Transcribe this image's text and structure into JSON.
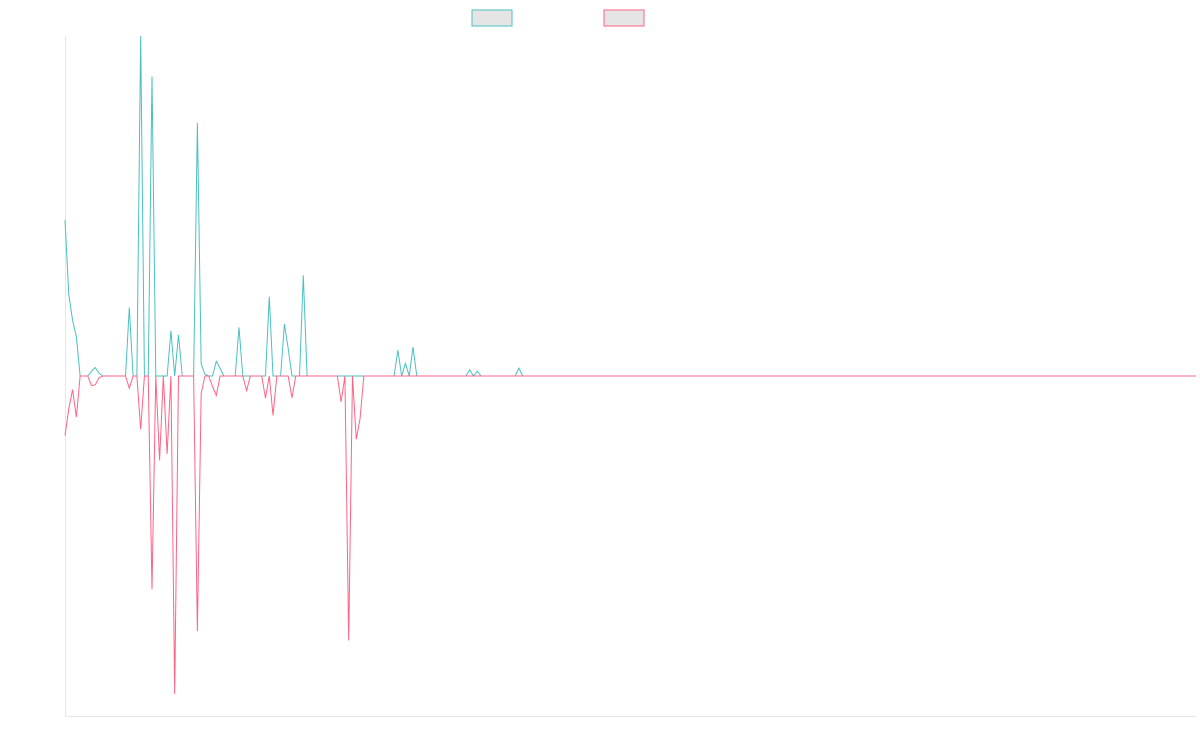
{
  "colors": {
    "background": "#ffffff",
    "axis": "#e6e6e6",
    "series_a": "#4bc0c0",
    "series_b": "#ff6384",
    "legend_fill": "#e5e5e5"
  },
  "chart_data": {
    "type": "line",
    "title": "",
    "xlabel": "",
    "ylabel": "",
    "ylim": [
      -100,
      100
    ],
    "grid": false,
    "legend": {
      "placement": "top-center",
      "entries": [
        "",
        ""
      ]
    },
    "x_count": 300,
    "series": [
      {
        "values": [
          45.9,
          24,
          16.4,
          11.6,
          0,
          0,
          0,
          1.4,
          2.5,
          0.8,
          0,
          0,
          0,
          0,
          0,
          0,
          0,
          20.1,
          0,
          0,
          100,
          0,
          0,
          88.1,
          0,
          0,
          0,
          0,
          13.3,
          0,
          12.1,
          0,
          0,
          0,
          0,
          74.4,
          3.5,
          0.5,
          0,
          0,
          4.3,
          2.3,
          0,
          0,
          0,
          0,
          14.3,
          0,
          0,
          0,
          0,
          0,
          0,
          0,
          23.3,
          0,
          0,
          0,
          15.3,
          8.1,
          0,
          0,
          0,
          29.6,
          0,
          0,
          0,
          0,
          0,
          0,
          0,
          0,
          0,
          0,
          0,
          0,
          0,
          0,
          0,
          0,
          0,
          0,
          0,
          0,
          0,
          0,
          0,
          0,
          7.6,
          0,
          3.7,
          0,
          8.5,
          0,
          0,
          0,
          0,
          0,
          0,
          0,
          0,
          0,
          0,
          0,
          0,
          0,
          0,
          1.8,
          0,
          1.4,
          0,
          0,
          0,
          0,
          0,
          0,
          0,
          0,
          0,
          0,
          2.3,
          0,
          0,
          0,
          0,
          0,
          0,
          0,
          0,
          0,
          0,
          0,
          0,
          0,
          0,
          0
        ]
      },
      {
        "values": [
          -17.5,
          -9.6,
          -4,
          -12.1,
          0,
          0,
          0,
          -2.8,
          -2.6,
          -0.5,
          0,
          0,
          0,
          0,
          0,
          0,
          0,
          -3.6,
          0,
          0,
          -15.7,
          0,
          0,
          -62.7,
          0,
          -24.8,
          0,
          -22.9,
          0,
          -93.5,
          0,
          0,
          0,
          0,
          0,
          -75,
          -5.1,
          0,
          0,
          -3.1,
          -5.7,
          0,
          0,
          0,
          0,
          0,
          0,
          0,
          -4.3,
          0,
          0,
          0,
          0,
          -6.5,
          0,
          -11.6,
          0,
          0,
          0,
          0,
          -6.4,
          0,
          0,
          0,
          0,
          0,
          0,
          0,
          0,
          0,
          0,
          0,
          0,
          -7.6,
          0,
          -77.8,
          0,
          -18.6,
          -12.6,
          0,
          0,
          0,
          0,
          0,
          0,
          0,
          0,
          0,
          0,
          0,
          0,
          0,
          0,
          0,
          0,
          0,
          0,
          0,
          0,
          0,
          0,
          0,
          0,
          0,
          0,
          0,
          0,
          0,
          0,
          0,
          0,
          0,
          0,
          0,
          0,
          0,
          0,
          0,
          0,
          0,
          0,
          0,
          0,
          0,
          0,
          0
        ]
      }
    ]
  }
}
